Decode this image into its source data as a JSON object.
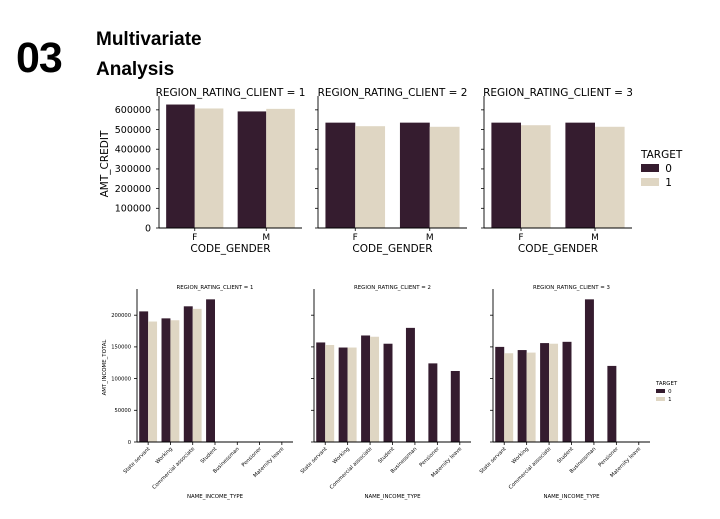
{
  "slide": {
    "number": "03",
    "title_line1": "Multivariate",
    "title_line2": "Analysis"
  },
  "colors": {
    "target_0": "#351c2f",
    "target_1": "#dfd6c3"
  },
  "chart_data": [
    {
      "type": "bar",
      "title": "",
      "xlabel": "CODE_GENDER",
      "ylabel": "AMT_CREDIT",
      "ylim": [
        0,
        650000
      ],
      "yticks": [
        0,
        100000,
        200000,
        300000,
        400000,
        500000,
        600000
      ],
      "legend": {
        "title": "TARGET",
        "entries": [
          "0",
          "1"
        ],
        "placement": "right"
      },
      "panels": [
        {
          "title": "REGION_RATING_CLIENT = 1",
          "categories": [
            "F",
            "M"
          ],
          "series": [
            {
              "name": "0",
              "values": [
                627000,
                592000
              ]
            },
            {
              "name": "1",
              "values": [
                607000,
                605000
              ]
            }
          ]
        },
        {
          "title": "REGION_RATING_CLIENT = 2",
          "categories": [
            "F",
            "M"
          ],
          "series": [
            {
              "name": "0",
              "values": [
                535000,
                535000
              ]
            },
            {
              "name": "1",
              "values": [
                517000,
                514000
              ]
            }
          ]
        },
        {
          "title": "REGION_RATING_CLIENT = 3",
          "categories": [
            "F",
            "M"
          ],
          "series": [
            {
              "name": "0",
              "values": [
                535000,
                535000
              ]
            },
            {
              "name": "1",
              "values": [
                522000,
                514000
              ]
            }
          ]
        }
      ]
    },
    {
      "type": "bar",
      "title": "",
      "xlabel": "NAME_INCOME_TYPE",
      "ylabel": "AMT_INCOME_TOTAL",
      "ylim": [
        0,
        235000
      ],
      "yticks": [
        0,
        50000,
        100000,
        150000,
        200000
      ],
      "legend": {
        "title": "TARGET",
        "entries": [
          "0",
          "1"
        ],
        "placement": "right"
      },
      "panels": [
        {
          "title": "REGION_RATING_CLIENT = 1",
          "categories": [
            "State servant",
            "Working",
            "Commercial associate",
            "Student",
            "Businessman",
            "Pensioner",
            "Maternity leave"
          ],
          "series": [
            {
              "name": "0",
              "values": [
                206000,
                195000,
                214000,
                225000,
                null,
                null,
                null
              ]
            },
            {
              "name": "1",
              "values": [
                190000,
                192000,
                210000,
                null,
                null,
                null,
                null
              ]
            }
          ]
        },
        {
          "title": "REGION_RATING_CLIENT = 2",
          "categories": [
            "State servant",
            "Working",
            "Commercial associate",
            "Student",
            "Businessman",
            "Pensioner",
            "Maternity leave"
          ],
          "series": [
            {
              "name": "0",
              "values": [
                157000,
                149000,
                168000,
                155000,
                180000,
                124000,
                112000
              ]
            },
            {
              "name": "1",
              "values": [
                153000,
                149000,
                166000,
                null,
                null,
                null,
                null
              ]
            }
          ]
        },
        {
          "title": "REGION_RATING_CLIENT = 3",
          "categories": [
            "State servant",
            "Working",
            "Commercial associate",
            "Student",
            "Businessman",
            "Pensioner",
            "Maternity leave"
          ],
          "series": [
            {
              "name": "0",
              "values": [
                150000,
                145000,
                156000,
                158000,
                225000,
                120000,
                null
              ]
            },
            {
              "name": "1",
              "values": [
                140000,
                141000,
                155000,
                null,
                null,
                null,
                null
              ]
            }
          ]
        }
      ]
    }
  ]
}
